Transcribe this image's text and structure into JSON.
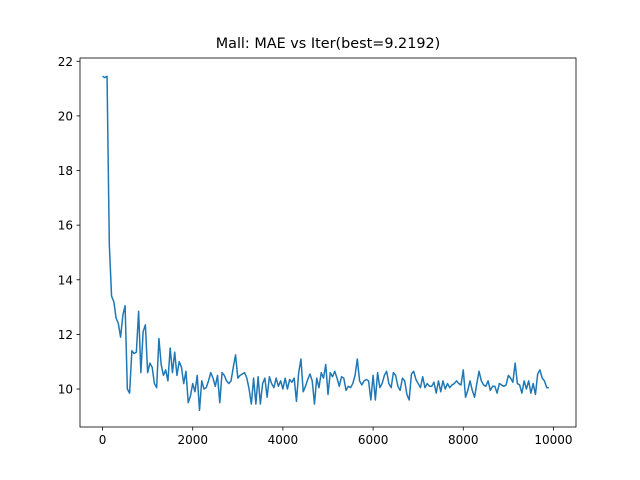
{
  "chart_data": {
    "type": "line",
    "title": "Mall: MAE vs Iter(best=9.2192)",
    "x": [
      0,
      50,
      100,
      150,
      200,
      250,
      300,
      350,
      400,
      450,
      500,
      550,
      600,
      650,
      700,
      750,
      800,
      850,
      900,
      950,
      1000,
      1050,
      1100,
      1150,
      1200,
      1250,
      1300,
      1350,
      1400,
      1450,
      1500,
      1550,
      1600,
      1650,
      1700,
      1750,
      1800,
      1850,
      1900,
      1950,
      2000,
      2050,
      2100,
      2150,
      2200,
      2250,
      2300,
      2350,
      2400,
      2450,
      2500,
      2550,
      2600,
      2650,
      2700,
      2750,
      2800,
      2850,
      2900,
      2950,
      3000,
      3050,
      3100,
      3150,
      3200,
      3250,
      3300,
      3350,
      3400,
      3450,
      3500,
      3550,
      3600,
      3650,
      3700,
      3750,
      3800,
      3850,
      3900,
      3950,
      4000,
      4050,
      4100,
      4150,
      4200,
      4250,
      4300,
      4350,
      4400,
      4450,
      4500,
      4550,
      4600,
      4650,
      4700,
      4750,
      4800,
      4850,
      4900,
      4950,
      5000,
      5050,
      5100,
      5150,
      5200,
      5250,
      5300,
      5350,
      5400,
      5450,
      5500,
      5550,
      5600,
      5650,
      5700,
      5750,
      5800,
      5850,
      5900,
      5950,
      6000,
      6050,
      6100,
      6150,
      6200,
      6250,
      6300,
      6350,
      6400,
      6450,
      6500,
      6550,
      6600,
      6650,
      6700,
      6750,
      6800,
      6850,
      6900,
      6950,
      7000,
      7050,
      7100,
      7150,
      7200,
      7250,
      7300,
      7350,
      7400,
      7450,
      7500,
      7550,
      7600,
      7650,
      7700,
      7750,
      7800,
      7850,
      7900,
      7950,
      8000,
      8050,
      8100,
      8150,
      8200,
      8250,
      8300,
      8350,
      8400,
      8450,
      8500,
      8550,
      8600,
      8650,
      8700,
      8750,
      8800,
      8850,
      8900,
      8950,
      9000,
      9050,
      9100,
      9150,
      9200,
      9250,
      9300,
      9350,
      9400,
      9450,
      9500,
      9550,
      9600,
      9650,
      9700,
      9750,
      9800,
      9850,
      9900
    ],
    "series": [
      {
        "color": "#1f77b4",
        "values": [
          21.45,
          21.4,
          21.45,
          15.3,
          13.4,
          13.2,
          12.6,
          12.4,
          11.9,
          12.7,
          13.05,
          10.0,
          9.85,
          11.4,
          11.3,
          11.35,
          12.85,
          10.6,
          12.1,
          12.35,
          10.6,
          10.95,
          10.8,
          10.2,
          10.05,
          11.85,
          10.9,
          10.5,
          10.7,
          10.3,
          11.5,
          10.6,
          11.35,
          10.5,
          11.0,
          10.8,
          10.2,
          10.65,
          9.5,
          9.75,
          10.2,
          9.9,
          10.5,
          9.2192,
          10.3,
          10.0,
          10.05,
          10.3,
          10.6,
          10.4,
          10.1,
          10.5,
          9.5,
          10.6,
          10.5,
          10.3,
          10.2,
          10.3,
          10.8,
          11.25,
          10.4,
          10.5,
          10.55,
          10.6,
          10.4,
          10.0,
          9.45,
          10.4,
          9.45,
          10.45,
          9.45,
          10.2,
          10.4,
          9.7,
          10.45,
          10.2,
          10.05,
          10.4,
          10.1,
          10.3,
          10.0,
          10.4,
          10.0,
          10.35,
          10.25,
          10.4,
          9.55,
          10.6,
          11.1,
          9.9,
          10.1,
          10.35,
          10.55,
          10.3,
          9.45,
          10.4,
          10.05,
          10.6,
          10.4,
          10.9,
          9.8,
          10.6,
          10.45,
          10.65,
          10.4,
          10.1,
          10.45,
          10.4,
          9.95,
          10.1,
          10.05,
          10.2,
          10.5,
          11.1,
          10.3,
          10.15,
          10.3,
          10.35,
          10.3,
          9.6,
          10.5,
          9.6,
          10.6,
          10.05,
          10.2,
          10.5,
          10.65,
          10.2,
          10.05,
          10.6,
          10.5,
          10.1,
          9.95,
          10.4,
          10.3,
          9.8,
          9.6,
          10.55,
          10.65,
          10.35,
          10.2,
          10.05,
          10.45,
          10.05,
          10.2,
          10.1,
          10.1,
          10.25,
          9.85,
          10.3,
          9.9,
          10.3,
          10.0,
          10.2,
          10.05,
          10.15,
          10.2,
          10.3,
          10.2,
          10.15,
          10.7,
          9.7,
          9.95,
          10.3,
          9.95,
          9.7,
          10.2,
          10.65,
          10.3,
          10.15,
          10.1,
          10.3,
          9.95,
          10.1,
          10.1,
          9.85,
          10.2,
          10.15,
          10.1,
          10.15,
          10.5,
          10.4,
          10.25,
          10.95,
          10.2,
          10.15,
          9.85,
          10.3,
          10.0,
          10.3,
          9.85,
          10.2,
          9.8,
          10.55,
          10.7,
          10.4,
          10.3,
          10.05,
          10.05
        ]
      }
    ],
    "xlim": [
      -500,
      10500
    ],
    "xticks": [
      0,
      2000,
      4000,
      6000,
      8000,
      10000
    ],
    "ylim": [
      8.61,
      22.12
    ],
    "yticks": [
      10,
      12,
      14,
      16,
      18,
      20,
      22
    ],
    "grid": false
  }
}
